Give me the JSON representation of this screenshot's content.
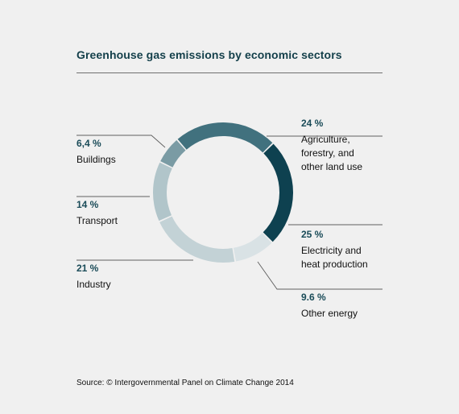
{
  "title": "Greenhouse gas emissions by economic sectors",
  "source": "Source: © Intergovernmental Panel on Climate Change 2014",
  "chart_data": {
    "type": "pie",
    "title": "Greenhouse gas emissions by economic sectors",
    "style": "donut",
    "legend": "labels beside slices",
    "slices": [
      {
        "name": "Agriculture,\nforestry, and\nother land use",
        "label": "24 %",
        "value": 24,
        "color": "#41717e"
      },
      {
        "name": "Electricity and\nheat production",
        "label": "25 %",
        "value": 25,
        "color": "#0e4150"
      },
      {
        "name": "Other energy",
        "label": "9.6 %",
        "value": 9.6,
        "color": "#d9e2e5"
      },
      {
        "name": "Industry",
        "label": "21 %",
        "value": 21,
        "color": "#c3d2d6"
      },
      {
        "name": "Transport",
        "label": "14 %",
        "value": 14,
        "color": "#b1c5ca"
      },
      {
        "name": "Buildings",
        "label": "6,4 %",
        "value": 6.4,
        "color": "#7a9ba4"
      }
    ]
  }
}
